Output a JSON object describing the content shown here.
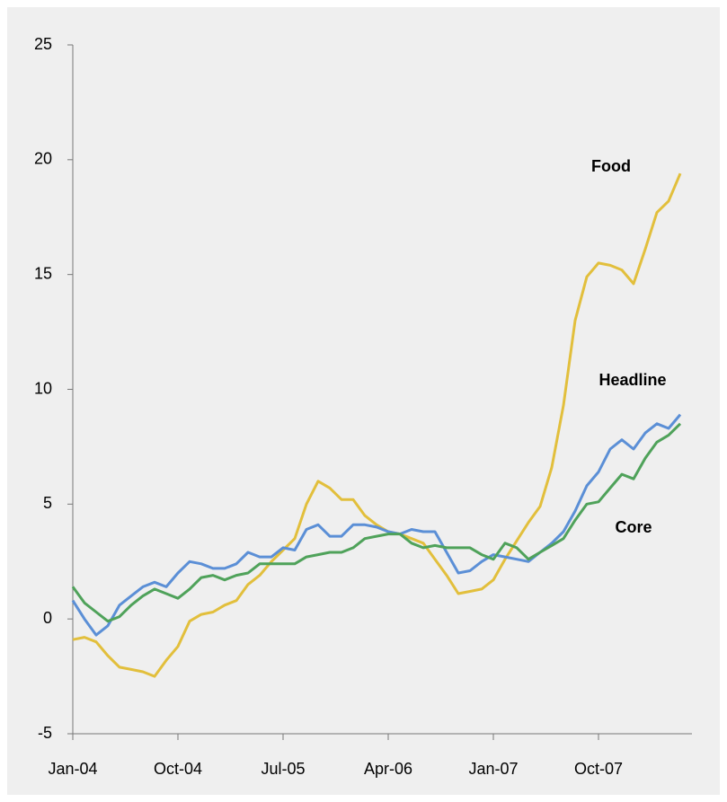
{
  "chart_data": {
    "type": "line",
    "categories": [
      "Jan-04",
      null,
      null,
      null,
      null,
      null,
      null,
      null,
      null,
      "Oct-04",
      null,
      null,
      null,
      null,
      null,
      null,
      null,
      null,
      "Jul-05",
      null,
      null,
      null,
      null,
      null,
      null,
      null,
      null,
      "Apr-06",
      null,
      null,
      null,
      null,
      null,
      null,
      null,
      null,
      "Jan-07",
      null,
      null,
      null,
      null,
      null,
      null,
      null,
      null,
      "Oct-07",
      null,
      null,
      null,
      null,
      null,
      null,
      null
    ],
    "series": [
      {
        "name": "Food",
        "color": "#e2bf3c",
        "values": [
          -0.9,
          -0.8,
          -1.0,
          -1.6,
          -2.1,
          -2.2,
          -2.3,
          -2.5,
          -1.8,
          -1.2,
          -0.1,
          0.2,
          0.3,
          0.6,
          0.8,
          1.5,
          1.9,
          2.5,
          3.0,
          3.5,
          5.0,
          6.0,
          5.7,
          5.2,
          5.2,
          4.5,
          4.1,
          3.8,
          3.7,
          3.5,
          3.3,
          2.6,
          1.9,
          1.1,
          1.2,
          1.3,
          1.7,
          2.6,
          3.4,
          4.2,
          4.9,
          6.6,
          9.3,
          13.0,
          14.9,
          15.5,
          15.4,
          15.2,
          14.6,
          16.1,
          17.7,
          18.2,
          19.4
        ]
      },
      {
        "name": "Headline",
        "color": "#5b8fd6",
        "values": [
          0.8,
          0.0,
          -0.7,
          -0.3,
          0.6,
          1.0,
          1.4,
          1.6,
          1.4,
          2.0,
          2.5,
          2.4,
          2.2,
          2.2,
          2.4,
          2.9,
          2.7,
          2.7,
          3.1,
          3.0,
          3.9,
          4.1,
          3.6,
          3.6,
          4.1,
          4.1,
          4.0,
          3.8,
          3.7,
          3.9,
          3.8,
          3.8,
          2.9,
          2.0,
          2.1,
          2.5,
          2.8,
          2.7,
          2.6,
          2.5,
          2.9,
          3.3,
          3.8,
          4.7,
          5.8,
          6.4,
          7.4,
          7.8,
          7.4,
          8.1,
          8.5,
          8.3,
          8.9
        ]
      },
      {
        "name": "Core",
        "color": "#4fa25a",
        "values": [
          1.4,
          0.7,
          0.3,
          -0.1,
          0.1,
          0.6,
          1.0,
          1.3,
          1.1,
          0.9,
          1.3,
          1.8,
          1.9,
          1.7,
          1.9,
          2.0,
          2.4,
          2.4,
          2.4,
          2.4,
          2.7,
          2.8,
          2.9,
          2.9,
          3.1,
          3.5,
          3.6,
          3.7,
          3.7,
          3.3,
          3.1,
          3.2,
          3.1,
          3.1,
          3.1,
          2.8,
          2.6,
          3.3,
          3.1,
          2.6,
          2.9,
          3.2,
          3.5,
          4.3,
          5.0,
          5.1,
          5.7,
          6.3,
          6.1,
          7.0,
          7.7,
          8.0,
          8.5
        ]
      }
    ],
    "ylim": [
      -5,
      25
    ],
    "yticks": [
      -5,
      0,
      5,
      10,
      15,
      20,
      25
    ],
    "grid": false
  }
}
